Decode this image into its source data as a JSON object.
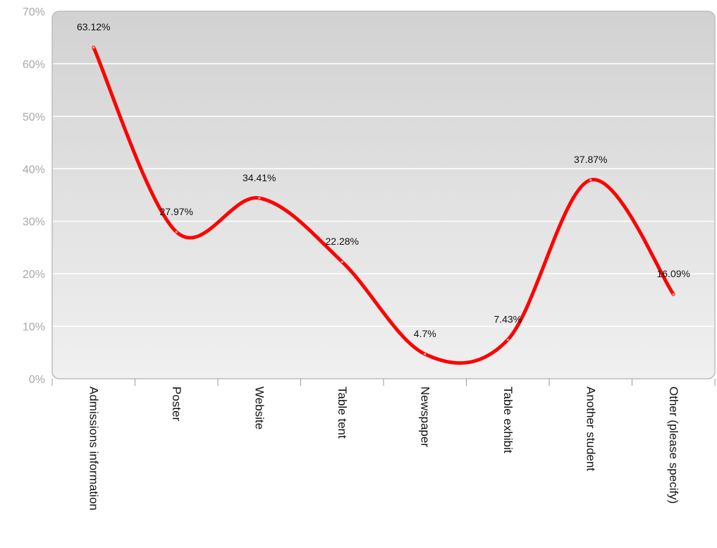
{
  "chart_data": {
    "type": "line",
    "smooth": true,
    "categories": [
      "Admissions information",
      "Poster",
      "Website",
      "Table tent",
      "Newspaper",
      "Table exhibit",
      "Another student",
      "Other (please specify)"
    ],
    "series": [
      {
        "values": [
          63.12,
          27.97,
          34.41,
          22.28,
          4.7,
          7.43,
          37.87,
          16.09
        ],
        "color": "#ff0000"
      }
    ],
    "data_labels": [
      "63.12%",
      "27.97%",
      "34.41%",
      "22.28%",
      "4.7%",
      "7.43%",
      "37.87%",
      "16.09%"
    ],
    "ylim": [
      0,
      70
    ],
    "yticks": [
      0,
      10,
      20,
      30,
      40,
      50,
      60,
      70
    ],
    "ytick_labels": [
      "0%",
      "10%",
      "20%",
      "30%",
      "40%",
      "50%",
      "60%",
      "70%"
    ],
    "grid": true,
    "legend": false,
    "background": {
      "top": "#d2d2d2",
      "bottom": "#f0f0f0",
      "border": "#bdbdbd",
      "grid": "#ffffff"
    }
  }
}
